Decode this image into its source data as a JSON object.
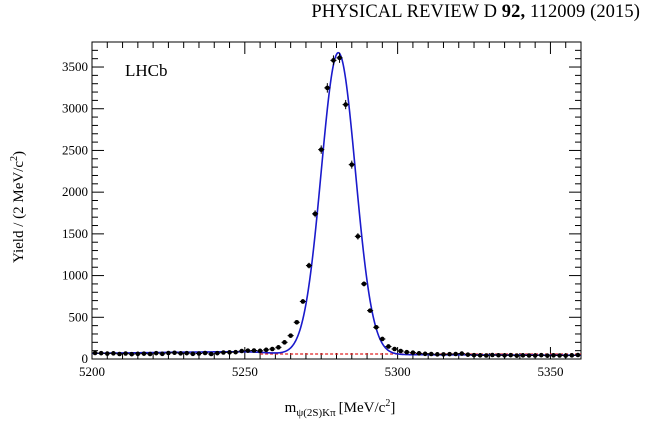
{
  "header": {
    "journal": "PHYSICAL REVIEW D",
    "volume": "92,",
    "article": "112009 (2015)"
  },
  "chart_data": {
    "type": "scatter",
    "title": "",
    "xlabel_base": "m",
    "xlabel_sub": "ψ(2S)Kπ",
    "xlabel_unit": "[MeV/c",
    "xlabel_unit_sup": "2",
    "xlabel_unit_end": "]",
    "ylabel_base": "Yield / (2 MeV/c",
    "ylabel_sup": "2",
    "ylabel_end": ")",
    "annotation": "LHCb",
    "xlim": [
      5200,
      5360
    ],
    "ylim": [
      0,
      3800
    ],
    "x_major_ticks": [
      5200,
      5250,
      5300,
      5350
    ],
    "x_tick_labels": [
      "5200",
      "5250",
      "5300",
      "5350"
    ],
    "y_major_ticks": [
      0,
      500,
      1000,
      1500,
      2000,
      2500,
      3000,
      3500
    ],
    "y_tick_labels": [
      "0",
      "500",
      "1000",
      "1500",
      "2000",
      "2500",
      "3000",
      "3500"
    ],
    "grid": false,
    "legend": "none",
    "series": [
      {
        "kind": "points-with-errors",
        "color": "#000000",
        "x": [
          5201,
          5203,
          5205,
          5207,
          5209,
          5211,
          5213,
          5215,
          5217,
          5219,
          5221,
          5223,
          5225,
          5227,
          5229,
          5231,
          5233,
          5235,
          5237,
          5239,
          5241,
          5243,
          5245,
          5247,
          5249,
          5251,
          5253,
          5255,
          5257,
          5259,
          5261,
          5263,
          5265,
          5267,
          5269,
          5271,
          5273,
          5275,
          5277,
          5279,
          5281,
          5283,
          5285,
          5287,
          5289,
          5291,
          5293,
          5295,
          5297,
          5299,
          5301,
          5303,
          5305,
          5307,
          5309,
          5311,
          5313,
          5315,
          5317,
          5319,
          5321,
          5323,
          5325,
          5327,
          5329,
          5331,
          5333,
          5335,
          5337,
          5339,
          5341,
          5343,
          5345,
          5347,
          5349,
          5351,
          5353,
          5355,
          5357,
          5359
        ],
        "y": [
          72,
          70,
          65,
          68,
          60,
          66,
          58,
          62,
          64,
          60,
          70,
          62,
          72,
          75,
          68,
          70,
          62,
          66,
          72,
          60,
          70,
          78,
          80,
          82,
          96,
          100,
          102,
          98,
          110,
          120,
          140,
          200,
          280,
          440,
          690,
          1120,
          1740,
          2510,
          3250,
          3580,
          3610,
          3050,
          2330,
          1470,
          900,
          580,
          380,
          240,
          150,
          120,
          96,
          82,
          76,
          68,
          62,
          60,
          56,
          55,
          58,
          60,
          65,
          52,
          46,
          44,
          42,
          48,
          45,
          43,
          46,
          40,
          44,
          42,
          42,
          46,
          40,
          44,
          42,
          40,
          44,
          48
        ]
      },
      {
        "kind": "total-fit",
        "color": "#1a1acc",
        "peak_mean": 5280.6,
        "peak_sigma": 5.6,
        "peak_amplitude": 3620
      },
      {
        "kind": "background",
        "color": "#e02020",
        "style": "dashed",
        "level": 60
      }
    ]
  }
}
